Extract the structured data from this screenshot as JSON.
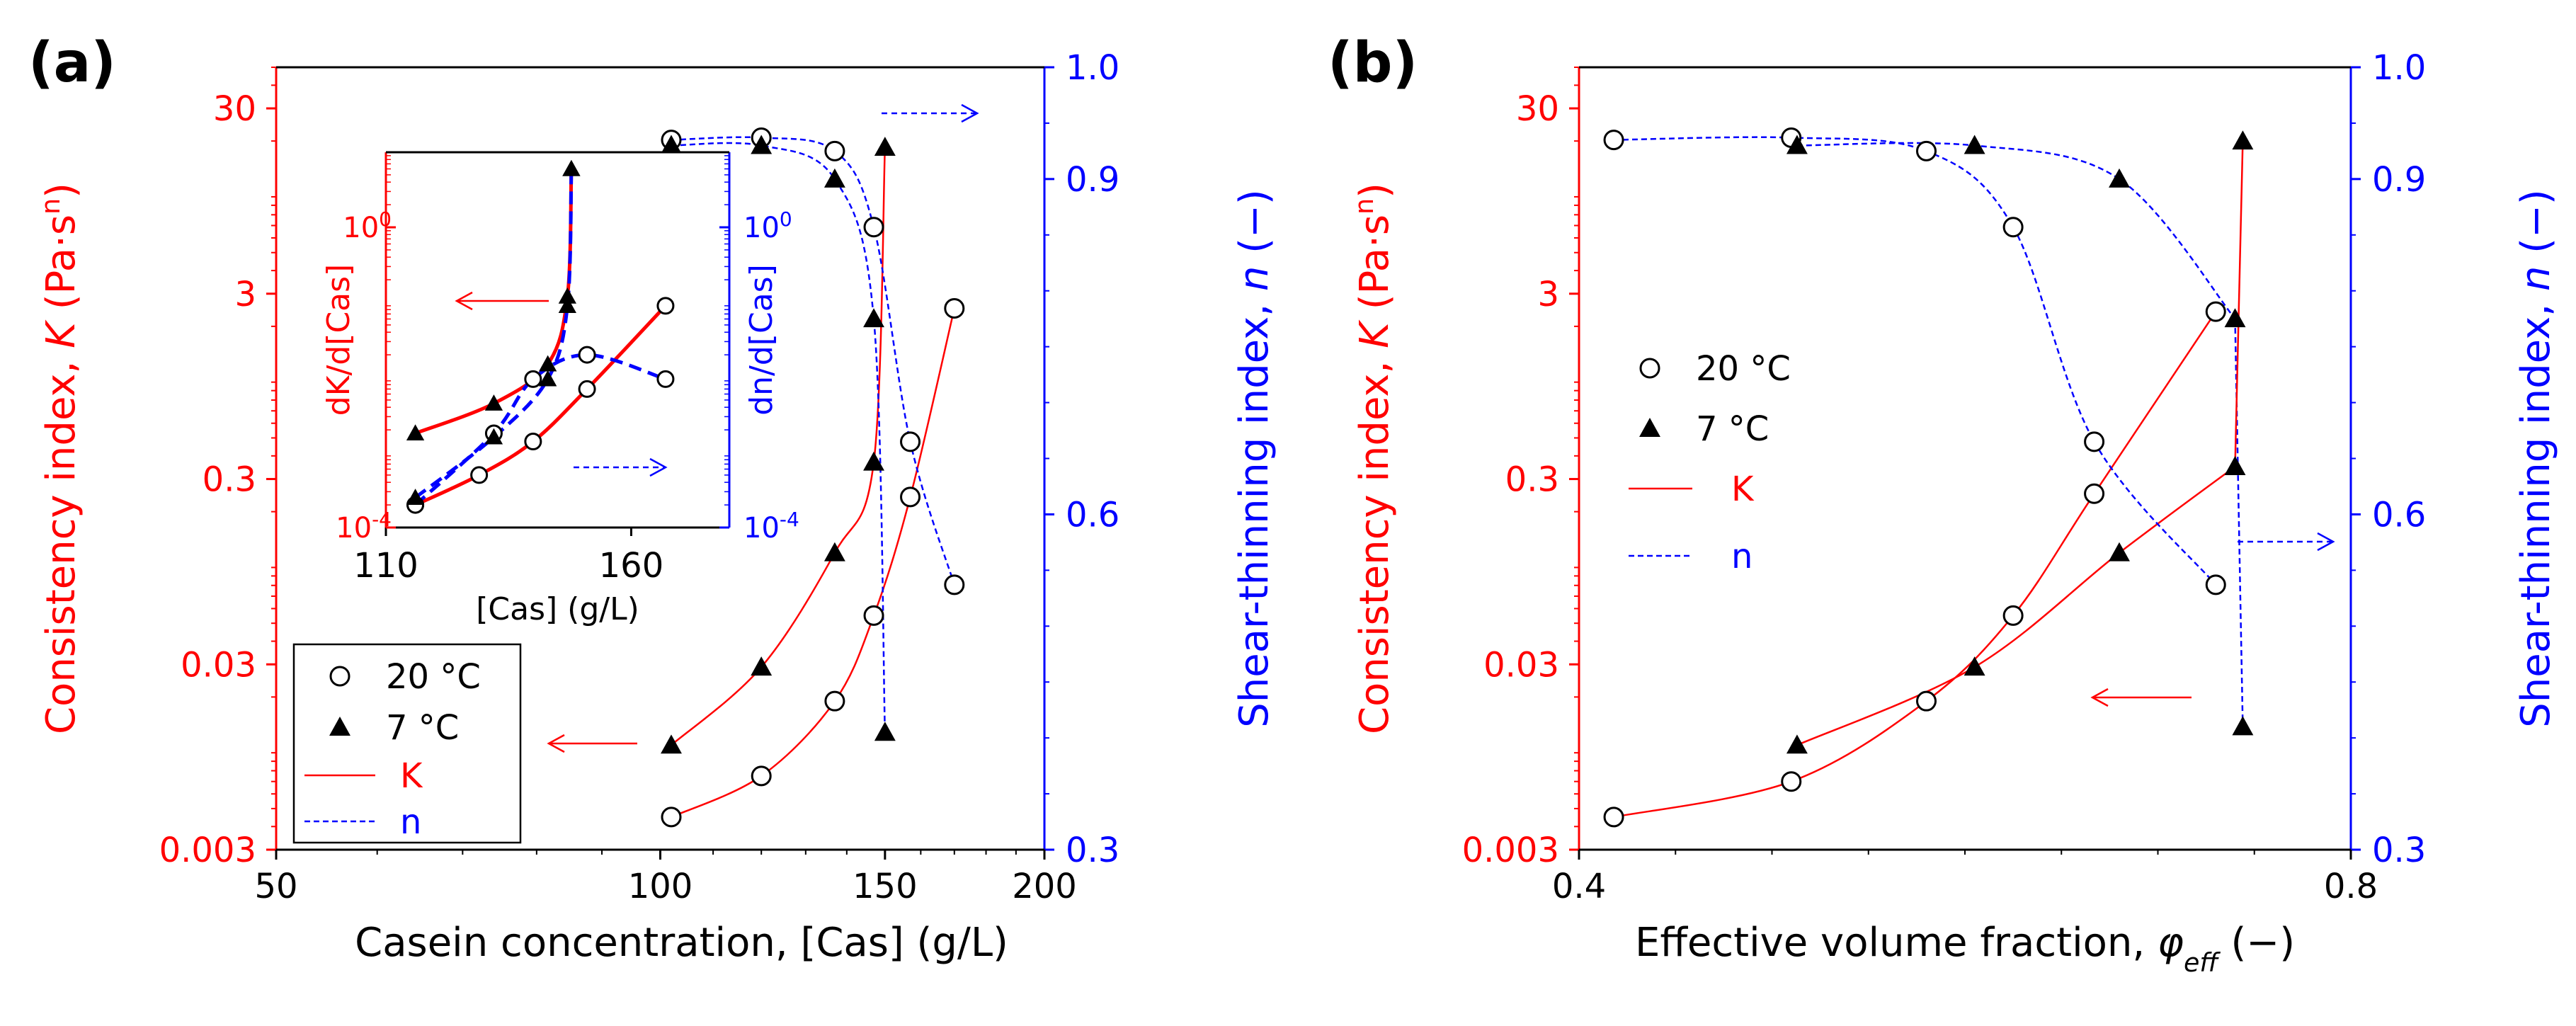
{
  "colors": {
    "left_axis": "#ff0000",
    "right_axis": "#0000ff",
    "frame": "#000000",
    "marker": "#000000"
  },
  "chart_data": [
    {
      "panel_label": "(a)",
      "type": "scatter",
      "xlabel": "Casein concentration, [Cas] (g/L)",
      "xscale": "log",
      "xlim": [
        50,
        200
      ],
      "xticks": [
        "50",
        "100",
        "150",
        "200"
      ],
      "ylabel_left": "Consistency index, K (Pa·s^n)",
      "yscale_left": "log",
      "ylim_left": [
        0.003,
        50
      ],
      "yticks_left": [
        "0.003",
        "0.03",
        "0.3",
        "3",
        "30"
      ],
      "ylabel_right": "Shear-thinning index, n (−)",
      "ylim_right": [
        0.3,
        1.0
      ],
      "yticks_right": [
        "0.3",
        "0.6",
        "0.9",
        "1.0"
      ],
      "grid": false,
      "legend_position": "bottom-left",
      "legend": [
        "20 °C",
        "7 °C",
        "K",
        "n"
      ],
      "series": [
        {
          "name": "20 °C",
          "variable": "K",
          "marker": "open-circle",
          "x": [
            102,
            120,
            137,
            147,
            157,
            170
          ],
          "y": [
            0.0045,
            0.0075,
            0.019,
            0.055,
            0.24,
            2.5
          ]
        },
        {
          "name": "7 °C",
          "variable": "K",
          "marker": "filled-triangle",
          "x": [
            102,
            120,
            137,
            147,
            150
          ],
          "y": [
            0.011,
            0.029,
            0.12,
            0.37,
            18.5
          ]
        },
        {
          "name": "20 °C",
          "variable": "n",
          "marker": "open-circle",
          "x": [
            102,
            120,
            137,
            147,
            157,
            170
          ],
          "y": [
            0.935,
            0.937,
            0.925,
            0.857,
            0.665,
            0.537
          ]
        },
        {
          "name": "7 °C",
          "variable": "n",
          "marker": "filled-triangle",
          "x": [
            102,
            120,
            137,
            147,
            150
          ],
          "y": [
            0.93,
            0.93,
            0.9,
            0.775,
            0.405
          ]
        }
      ],
      "inset": {
        "xlabel": "[Cas] (g/L)",
        "xlim": [
          110,
          180
        ],
        "xticks": [
          "110",
          "160"
        ],
        "ylabel_left": "dK/d[Cas]",
        "ylim_left": [
          0.0001,
          10
        ],
        "ylabel_right": "dn/d[Cas]",
        "ylim_right": [
          0.0001,
          10
        ],
        "series": [
          {
            "name": "20 °C",
            "variable": "dK/d[Cas]",
            "x": [
              116,
              129,
              140,
              151,
              167
            ],
            "y": [
              0.0002,
              0.0005,
              0.0014,
              0.007,
              0.09
            ]
          },
          {
            "name": "7 °C",
            "variable": "dK/d[Cas]",
            "x": [
              116,
              132,
              143,
              147,
              147.8
            ],
            "y": [
              0.0018,
              0.0045,
              0.015,
              0.12,
              6.0
            ]
          },
          {
            "name": "20 °C",
            "variable": "dn/d[Cas]",
            "x": [
              116,
              132,
              140,
              151,
              167
            ],
            "y": [
              0.0002,
              0.0018,
              0.0095,
              0.02,
              0.0095
            ]
          },
          {
            "name": "7 °C",
            "variable": "dn/d[Cas]",
            "x": [
              116,
              132,
              143,
              147,
              147.8
            ],
            "y": [
              0.00025,
              0.0016,
              0.0095,
              0.09,
              6.0
            ]
          }
        ],
        "tick_labels": {
          "ylabel_left": [
            "10^-4",
            "10^0"
          ],
          "ylabel_right": [
            "10^-4",
            "10^0"
          ]
        }
      }
    },
    {
      "panel_label": "(b)",
      "type": "scatter",
      "xlabel": "Effective volume fraction, φeff (−)",
      "xlim": [
        0.4,
        0.8
      ],
      "xticks": [
        "0.4",
        "0.8"
      ],
      "ylabel_left": "Consistency index, K (Pa·s^n)",
      "yscale_left": "log",
      "ylim_left": [
        0.003,
        50
      ],
      "yticks_left": [
        "0.003",
        "0.03",
        "0.3",
        "3",
        "30"
      ],
      "ylabel_right": "Shear-thinning index, n (−)",
      "ylim_right": [
        0.3,
        1.0
      ],
      "yticks_right": [
        "0.3",
        "0.6",
        "0.9",
        "1.0"
      ],
      "grid": false,
      "legend_position": "center-left",
      "legend": [
        "20 °C",
        "7 °C",
        "K",
        "n"
      ],
      "series": [
        {
          "name": "20 °C",
          "variable": "K",
          "marker": "open-circle",
          "x": [
            0.418,
            0.51,
            0.58,
            0.625,
            0.667,
            0.73
          ],
          "y": [
            0.0045,
            0.007,
            0.019,
            0.055,
            0.25,
            2.4
          ]
        },
        {
          "name": "7 °C",
          "variable": "K",
          "marker": "filled-triangle",
          "x": [
            0.513,
            0.605,
            0.68,
            0.74
          ],
          "y": [
            0.011,
            0.029,
            0.12,
            0.35
          ]
        },
        {
          "name": "20 °C",
          "variable": "n",
          "marker": "open-circle",
          "x": [
            0.418,
            0.51,
            0.58,
            0.625,
            0.667,
            0.73
          ],
          "y": [
            0.935,
            0.937,
            0.925,
            0.857,
            0.665,
            0.537
          ]
        },
        {
          "name": "7 °C",
          "variable": "n",
          "marker": "filled-triangle",
          "x": [
            0.513,
            0.605,
            0.68,
            0.74
          ],
          "y": [
            0.93,
            0.93,
            0.9,
            0.775
          ]
        },
        {
          "name": "7 °C",
          "variable": "n",
          "marker": "filled-triangle",
          "x": [
            0.744
          ],
          "y": [
            0.41
          ]
        },
        {
          "name": "7 °C",
          "variable": "K",
          "marker": "filled-triangle",
          "x": [
            0.744
          ],
          "y": [
            20
          ]
        }
      ]
    }
  ]
}
